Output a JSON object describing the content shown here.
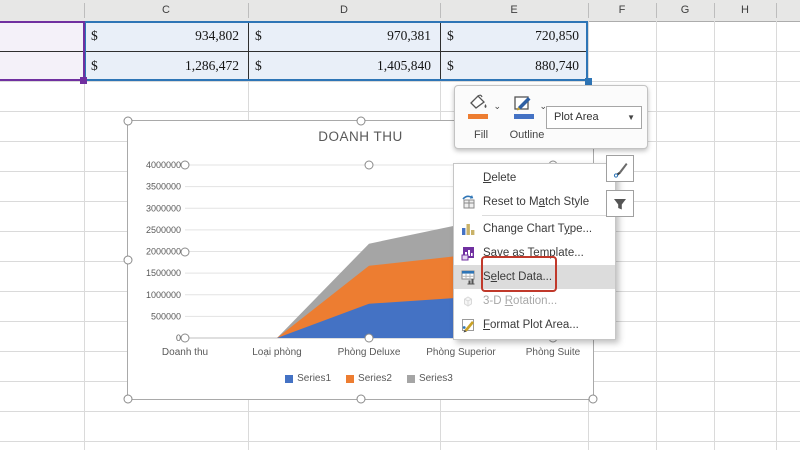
{
  "spreadsheet": {
    "column_headers": [
      "C",
      "D",
      "E",
      "F",
      "G",
      "H"
    ],
    "rows": [
      {
        "cells": [
          {
            "currency": "$",
            "value": "934,802"
          },
          {
            "currency": "$",
            "value": "970,381"
          },
          {
            "currency": "$",
            "value": "720,850"
          }
        ]
      },
      {
        "cells": [
          {
            "currency": "$",
            "value": "1,286,472"
          },
          {
            "currency": "$",
            "value": "1,405,840"
          },
          {
            "currency": "$",
            "value": "880,740"
          }
        ]
      }
    ],
    "colors": {
      "cell_fill": "#E9EFF8",
      "left_cell_fill": "#F4F1F9",
      "range_border_blue": "#2E75B6",
      "category_border_purple": "#7030A0"
    }
  },
  "chart_data": {
    "type": "area",
    "stacked": true,
    "title": "DOANH THU",
    "categories": [
      "Doanh thu",
      "Loại phòng",
      "Phòng Deluxe",
      "Phòng Superior",
      "Phòng Suite"
    ],
    "series": [
      {
        "name": "Series1",
        "color": "#4472C4",
        "values": [
          0,
          0,
          790000,
          934802,
          1286472
        ]
      },
      {
        "name": "Series2",
        "color": "#ED7D31",
        "values": [
          0,
          0,
          880000,
          970381,
          1405840
        ]
      },
      {
        "name": "Series3",
        "color": "#A5A5A5",
        "values": [
          0,
          0,
          510000,
          720850,
          880740
        ]
      }
    ],
    "y_ticks": [
      0,
      500000,
      1000000,
      1500000,
      2000000,
      2500000,
      3000000,
      3500000,
      4000000
    ],
    "ylim": [
      0,
      4000000
    ],
    "grid": true,
    "legend_position": "bottom"
  },
  "mini_toolbar": {
    "fill_label": "Fill",
    "outline_label": "Outline",
    "target_dropdown_value": "Plot Area",
    "fill_swatch_color": "#ED7D31",
    "outline_swatch_color": "#4472C4"
  },
  "context_menu": {
    "items": [
      {
        "id": "delete",
        "pre": "",
        "key": "D",
        "post": "elete",
        "icon": null,
        "enabled": true
      },
      {
        "id": "reset-to-match-style",
        "pre": "Reset to M",
        "key": "a",
        "post": "tch Style",
        "icon": "reset-icon",
        "enabled": true
      },
      {
        "separator": true
      },
      {
        "id": "change-chart-type",
        "pre": "Change Chart T",
        "key": "y",
        "post": "pe...",
        "icon": "chart-type-icon",
        "enabled": true
      },
      {
        "id": "save-as-template",
        "pre": "Save as ",
        "key": "T",
        "post": "emplate...",
        "icon": "save-template-icon",
        "enabled": true
      },
      {
        "id": "select-data",
        "pre": "S",
        "key": "e",
        "post": "lect Data...",
        "icon": "select-data-icon",
        "enabled": true,
        "highlighted": true,
        "annotated": true
      },
      {
        "id": "3d-rotation",
        "pre": "3-D ",
        "key": "R",
        "post": "otation...",
        "icon": "rotation-3d-icon",
        "enabled": false
      },
      {
        "id": "format-plot-area",
        "pre": "",
        "key": "F",
        "post": "ormat Plot Area...",
        "icon": "format-plot-area-icon",
        "enabled": true
      }
    ],
    "annotation_color": "#C0392B"
  }
}
